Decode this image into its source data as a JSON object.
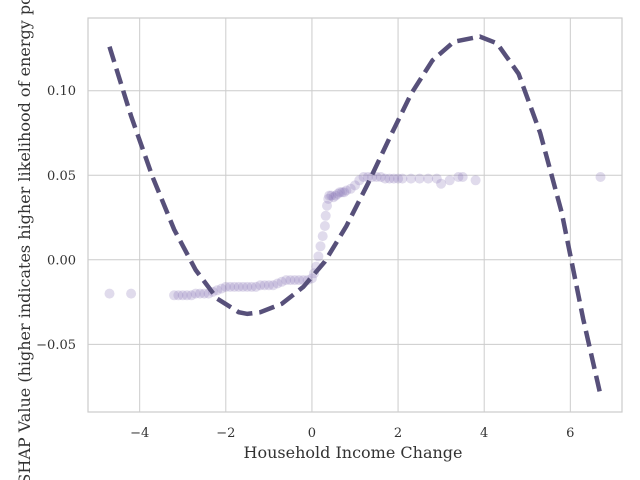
{
  "chart_data": {
    "type": "scatter",
    "xlabel": "Household Income Change",
    "ylabel": "SHAP Value (higher indicates higher likelihood of energy poverty)",
    "xlim": [
      -5.2,
      7.2
    ],
    "ylim": [
      -0.09,
      0.143
    ],
    "x_ticks": [
      -4,
      -2,
      0,
      2,
      4,
      6
    ],
    "x_tick_labels": [
      "−4",
      "−2",
      "0",
      "2",
      "4",
      "6"
    ],
    "y_ticks": [
      -0.05,
      0.0,
      0.05,
      0.1
    ],
    "y_tick_labels": [
      "−0.05",
      "0.00",
      "0.05",
      "0.10"
    ],
    "grid": true,
    "colors": {
      "points": "#8470b4",
      "fit_line": "#57507a",
      "grid": "#cccccc",
      "spine": "#cccccc"
    },
    "series": [
      {
        "kind": "scatter",
        "points": [
          [
            -4.7,
            -0.02
          ],
          [
            -4.2,
            -0.02
          ],
          [
            -3.2,
            -0.021
          ],
          [
            -3.1,
            -0.021
          ],
          [
            -3.0,
            -0.021
          ],
          [
            -2.9,
            -0.021
          ],
          [
            -2.8,
            -0.021
          ],
          [
            -2.7,
            -0.02
          ],
          [
            -2.6,
            -0.02
          ],
          [
            -2.5,
            -0.02
          ],
          [
            -2.4,
            -0.02
          ],
          [
            -2.3,
            -0.019
          ],
          [
            -2.2,
            -0.018
          ],
          [
            -2.1,
            -0.017
          ],
          [
            -2.0,
            -0.016
          ],
          [
            -1.9,
            -0.016
          ],
          [
            -1.8,
            -0.016
          ],
          [
            -1.7,
            -0.016
          ],
          [
            -1.6,
            -0.016
          ],
          [
            -1.5,
            -0.016
          ],
          [
            -1.4,
            -0.016
          ],
          [
            -1.3,
            -0.016
          ],
          [
            -1.2,
            -0.015
          ],
          [
            -1.1,
            -0.015
          ],
          [
            -1.0,
            -0.015
          ],
          [
            -0.9,
            -0.015
          ],
          [
            -0.8,
            -0.014
          ],
          [
            -0.7,
            -0.013
          ],
          [
            -0.6,
            -0.012
          ],
          [
            -0.5,
            -0.012
          ],
          [
            -0.4,
            -0.012
          ],
          [
            -0.3,
            -0.012
          ],
          [
            -0.2,
            -0.012
          ],
          [
            -0.1,
            -0.012
          ],
          [
            0.0,
            -0.011
          ],
          [
            0.05,
            -0.008
          ],
          [
            0.1,
            -0.004
          ],
          [
            0.15,
            0.002
          ],
          [
            0.2,
            0.008
          ],
          [
            0.25,
            0.014
          ],
          [
            0.3,
            0.02
          ],
          [
            0.32,
            0.026
          ],
          [
            0.35,
            0.032
          ],
          [
            0.38,
            0.036
          ],
          [
            0.4,
            0.038
          ],
          [
            0.45,
            0.038
          ],
          [
            0.5,
            0.037
          ],
          [
            0.55,
            0.038
          ],
          [
            0.6,
            0.039
          ],
          [
            0.65,
            0.04
          ],
          [
            0.7,
            0.04
          ],
          [
            0.75,
            0.04
          ],
          [
            0.8,
            0.041
          ],
          [
            0.9,
            0.042
          ],
          [
            1.0,
            0.044
          ],
          [
            1.1,
            0.047
          ],
          [
            1.2,
            0.049
          ],
          [
            1.3,
            0.049
          ],
          [
            1.4,
            0.049
          ],
          [
            1.5,
            0.049
          ],
          [
            1.6,
            0.049
          ],
          [
            1.7,
            0.048
          ],
          [
            1.8,
            0.048
          ],
          [
            1.9,
            0.048
          ],
          [
            2.0,
            0.048
          ],
          [
            2.1,
            0.048
          ],
          [
            2.3,
            0.048
          ],
          [
            2.5,
            0.048
          ],
          [
            2.7,
            0.048
          ],
          [
            2.9,
            0.048
          ],
          [
            3.0,
            0.045
          ],
          [
            3.2,
            0.047
          ],
          [
            3.4,
            0.049
          ],
          [
            3.5,
            0.049
          ],
          [
            3.8,
            0.047
          ],
          [
            6.7,
            0.049
          ]
        ]
      },
      {
        "kind": "line",
        "style": "dashed",
        "fit": "polynomial",
        "points": [
          [
            -4.7,
            0.126
          ],
          [
            -4.2,
            0.085
          ],
          [
            -3.7,
            0.049
          ],
          [
            -3.2,
            0.018
          ],
          [
            -2.7,
            -0.006
          ],
          [
            -2.2,
            -0.023
          ],
          [
            -1.7,
            -0.031
          ],
          [
            -1.5,
            -0.032
          ],
          [
            -1.2,
            -0.031
          ],
          [
            -0.7,
            -0.026
          ],
          [
            -0.2,
            -0.016
          ],
          [
            0.3,
            -0.001
          ],
          [
            0.8,
            0.02
          ],
          [
            1.3,
            0.045
          ],
          [
            1.8,
            0.072
          ],
          [
            2.3,
            0.098
          ],
          [
            2.8,
            0.118
          ],
          [
            3.3,
            0.129
          ],
          [
            3.9,
            0.132
          ],
          [
            4.3,
            0.128
          ],
          [
            4.8,
            0.11
          ],
          [
            5.3,
            0.075
          ],
          [
            5.8,
            0.028
          ],
          [
            6.3,
            -0.035
          ],
          [
            6.7,
            -0.08
          ]
        ]
      }
    ]
  }
}
